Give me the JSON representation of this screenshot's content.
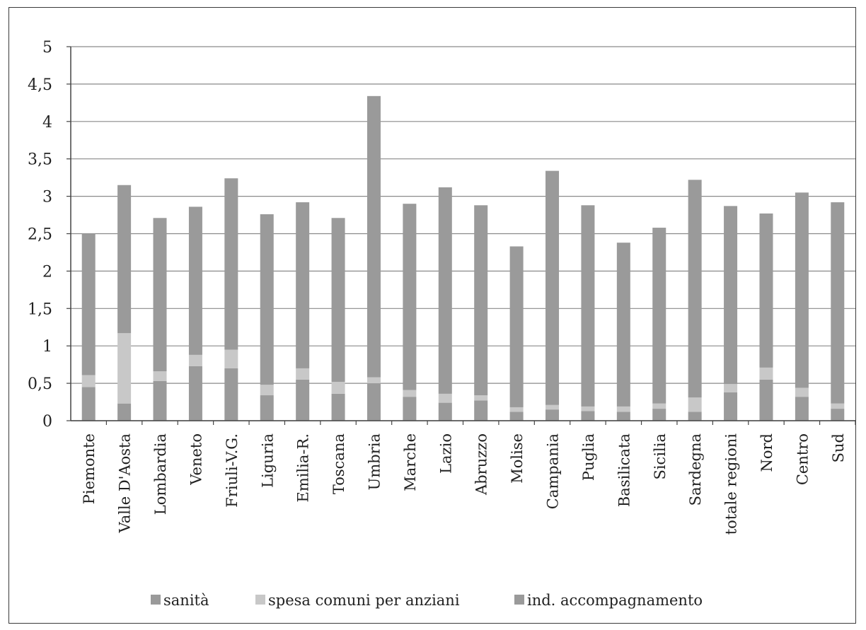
{
  "chart_data": {
    "type": "bar",
    "stacked": true,
    "categories": [
      "Piemonte",
      "Valle D'Aosta",
      "Lombardia",
      "Veneto",
      "Friuli-V.G.",
      "Liguria",
      "Emilia-R.",
      "Toscana",
      "Umbria",
      "Marche",
      "Lazio",
      "Abruzzo",
      "Molise",
      "Campania",
      "Puglia",
      "Basilicata",
      "Sicilia",
      "Sardegna",
      "totale regioni",
      "Nord",
      "Centro",
      "Sud"
    ],
    "series": [
      {
        "name": "sanità",
        "color": "#9a9a9a",
        "values": [
          0.45,
          0.23,
          0.53,
          0.73,
          0.7,
          0.34,
          0.55,
          0.36,
          0.5,
          0.32,
          0.24,
          0.27,
          0.12,
          0.15,
          0.13,
          0.12,
          0.16,
          0.12,
          0.38,
          0.55,
          0.32,
          0.16
        ]
      },
      {
        "name": "spesa comuni per anziani",
        "color": "#c8c8c8",
        "values": [
          0.16,
          0.94,
          0.13,
          0.15,
          0.25,
          0.14,
          0.15,
          0.16,
          0.08,
          0.09,
          0.12,
          0.07,
          0.06,
          0.06,
          0.06,
          0.07,
          0.07,
          0.19,
          0.11,
          0.16,
          0.12,
          0.07
        ]
      },
      {
        "name": "ind. accompagnamento",
        "color": "#9a9a9a",
        "values": [
          1.89,
          1.98,
          2.05,
          1.98,
          2.29,
          2.28,
          2.22,
          2.19,
          3.76,
          2.49,
          2.76,
          2.54,
          2.15,
          3.13,
          2.69,
          2.19,
          2.35,
          2.91,
          2.38,
          2.06,
          2.61,
          2.69
        ]
      }
    ],
    "ylim": [
      0,
      5
    ],
    "yticks": [
      0,
      0.5,
      1,
      1.5,
      2,
      2.5,
      3,
      3.5,
      4,
      4.5,
      5
    ],
    "ytick_labels": [
      "0",
      "0,5",
      "1",
      "1,5",
      "2",
      "2,5",
      "3",
      "3,5",
      "4",
      "4,5",
      "5"
    ],
    "grid": true,
    "legend_position": "bottom"
  }
}
